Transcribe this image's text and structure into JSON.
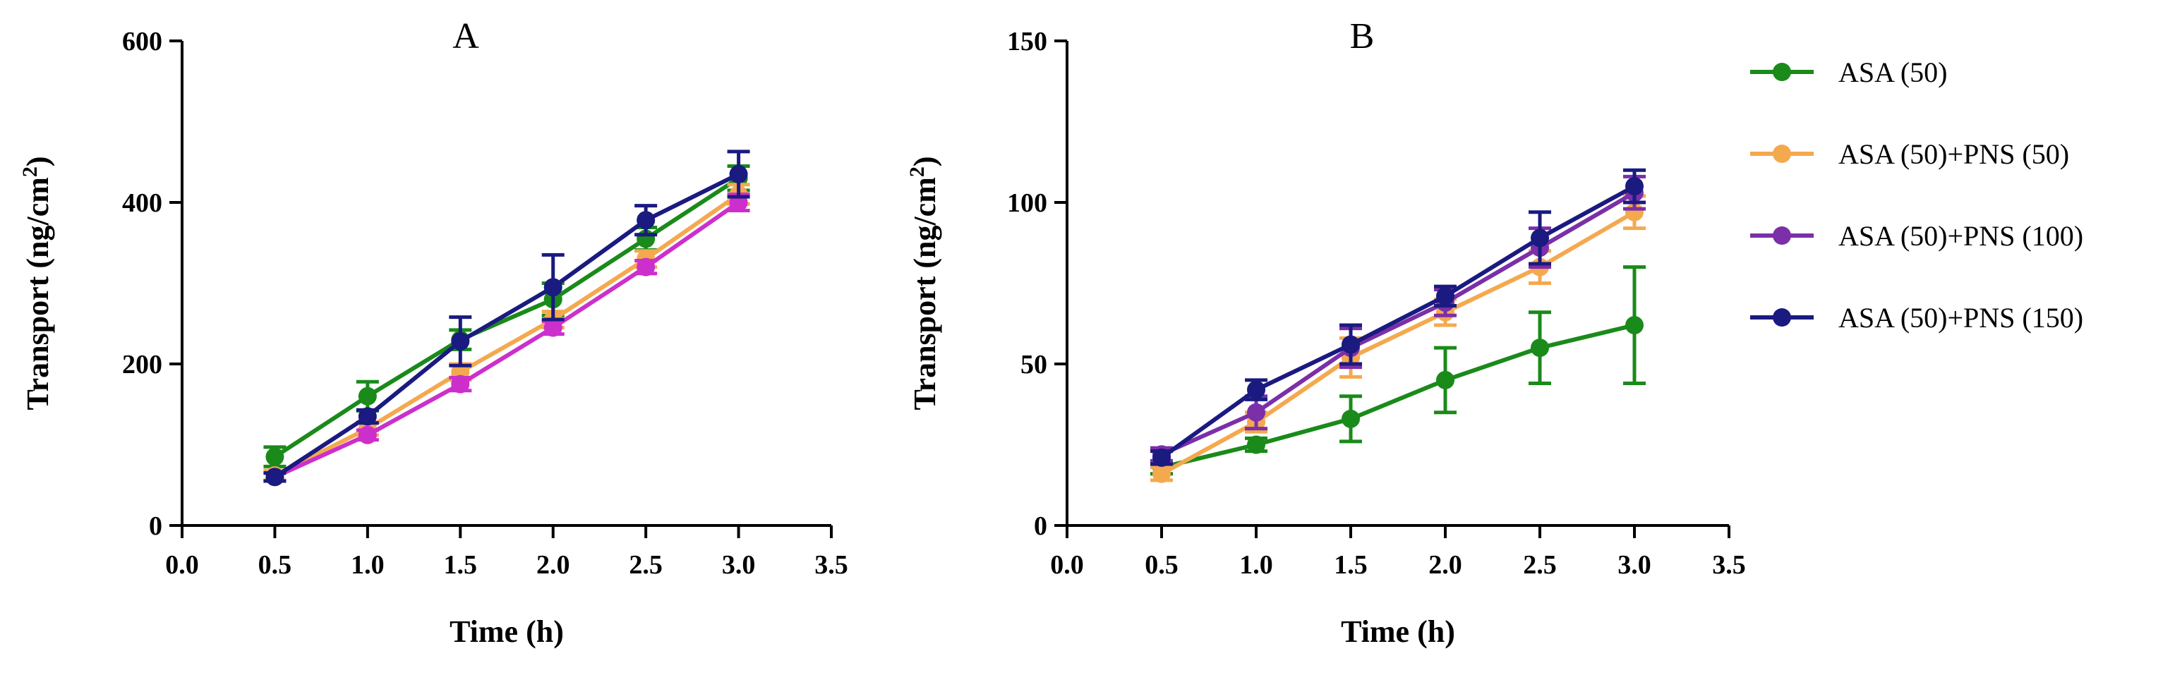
{
  "chart_data": [
    {
      "type": "line",
      "title": "A",
      "xlabel": "Time (h)",
      "ylabel": "Transport (ng/cm²)",
      "ylabel_main": "Transport (ng/cm",
      "ylabel_sup": "2",
      "ylabel_end": ")",
      "xlim": [
        0,
        3.5
      ],
      "ylim": [
        0,
        600
      ],
      "xticks": [
        "0.0",
        "0.5",
        "1.0",
        "1.5",
        "2.0",
        "2.5",
        "3.0",
        "3.5"
      ],
      "yticks": [
        "0",
        "200",
        "400",
        "600"
      ],
      "x": [
        0.5,
        1.0,
        1.5,
        2.0,
        2.5,
        3.0
      ],
      "series": [
        {
          "name": "ASA (50)",
          "color": "#1a8a1a",
          "values": [
            85,
            160,
            230,
            280,
            355,
            430
          ],
          "errors": [
            12,
            18,
            12,
            20,
            14,
            15
          ]
        },
        {
          "name": "ASA (50)+PNS (50)",
          "color": "#f4a94f",
          "values": [
            62,
            120,
            190,
            255,
            330,
            410
          ],
          "errors": [
            6,
            8,
            10,
            10,
            10,
            12
          ]
        },
        {
          "name": "ASA (50)+PNS (100)",
          "color": "#cc2fcc",
          "values": [
            60,
            112,
            175,
            245,
            320,
            400
          ],
          "errors": [
            5,
            6,
            8,
            8,
            8,
            10
          ]
        },
        {
          "name": "ASA (50)+PNS (150)",
          "color": "#1a1a80",
          "values": [
            60,
            135,
            228,
            295,
            378,
            435
          ],
          "errors": [
            5,
            8,
            30,
            40,
            18,
            28
          ]
        }
      ]
    },
    {
      "type": "line",
      "title": "B",
      "xlabel": "Time (h)",
      "ylabel": "Transport (ng/cm²)",
      "ylabel_main": "Transport (ng/cm",
      "ylabel_sup": "2",
      "ylabel_end": ")",
      "xlim": [
        0,
        3.5
      ],
      "ylim": [
        0,
        150
      ],
      "xticks": [
        "0.0",
        "0.5",
        "1.0",
        "1.5",
        "2.0",
        "2.5",
        "3.0",
        "3.5"
      ],
      "yticks": [
        "0",
        "50",
        "100",
        "150"
      ],
      "x": [
        0.5,
        1.0,
        1.5,
        2.0,
        2.5,
        3.0
      ],
      "series": [
        {
          "name": "ASA (50)",
          "color": "#1a8a1a",
          "values": [
            18,
            25,
            33,
            45,
            55,
            62
          ],
          "errors": [
            2,
            2,
            7,
            10,
            11,
            18
          ]
        },
        {
          "name": "ASA (50)+PNS (50)",
          "color": "#f4a94f",
          "values": [
            16,
            32,
            52,
            66,
            80,
            97
          ],
          "errors": [
            2,
            3,
            6,
            4,
            5,
            5
          ]
        },
        {
          "name": "ASA (50)+PNS (100)",
          "color": "#7b2fa8",
          "values": [
            22,
            35,
            55,
            69,
            86,
            103
          ],
          "errors": [
            2,
            5,
            6,
            4,
            6,
            5
          ]
        },
        {
          "name": "ASA (50)+PNS (150)",
          "color": "#1a1a80",
          "values": [
            21,
            42,
            56,
            71,
            89,
            105
          ],
          "errors": [
            2,
            3,
            6,
            3,
            8,
            5
          ]
        }
      ]
    }
  ],
  "legend": [
    {
      "label": "ASA (50)",
      "color": "#1a8a1a"
    },
    {
      "label": "ASA (50)+PNS (50)",
      "color": "#f4a94f"
    },
    {
      "label": "ASA (50)+PNS (100)",
      "color": "#7b2fa8"
    },
    {
      "label": "ASA (50)+PNS (150)",
      "color": "#1a1a80"
    }
  ]
}
